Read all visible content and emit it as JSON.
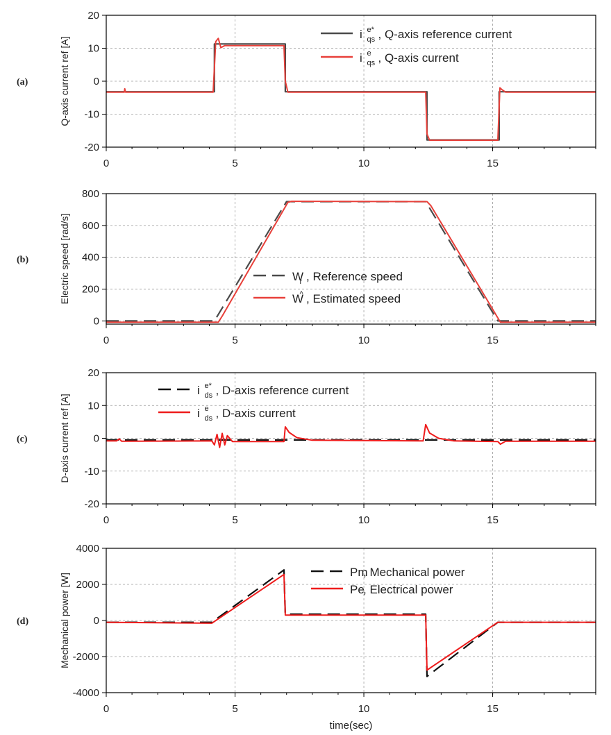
{
  "chart_data": [
    {
      "type": "line",
      "panel_label": "(a)",
      "ylabel": "Q-axis current ref [A]",
      "xlim": [
        0,
        19
      ],
      "ylim": [
        -20,
        20
      ],
      "yticks": [
        -20,
        -10,
        0,
        10,
        20
      ],
      "xticks": [
        0,
        5,
        10,
        15
      ],
      "grid": true,
      "legend_position": "top-right",
      "series": [
        {
          "symbol": "i",
          "sup": "e*",
          "sub": "qs",
          "name": ", Q-axis reference current",
          "color": "#4a4a4a",
          "dash": "solid",
          "x": [
            0,
            4.2,
            4.2,
            6.95,
            6.95,
            12.45,
            12.45,
            15.25,
            15.25,
            19
          ],
          "y": [
            -3.2,
            -3.2,
            11.3,
            11.3,
            -3.2,
            -3.2,
            -17.8,
            -17.8,
            -3.2,
            -3.2
          ]
        },
        {
          "symbol": "i",
          "sup": "e",
          "sub": "qs",
          "name": ", Q-axis current",
          "color": "#e8403a",
          "dash": "solid",
          "x": [
            0,
            0.7,
            0.72,
            0.75,
            4.15,
            4.25,
            4.35,
            4.45,
            4.6,
            6.9,
            6.95,
            7.05,
            12.4,
            12.45,
            12.55,
            15.2,
            15.28,
            15.35,
            15.5,
            19
          ],
          "y": [
            -3.3,
            -3.3,
            -2.3,
            -3.3,
            -3.3,
            12.0,
            13.0,
            10.2,
            10.8,
            10.8,
            0,
            -3.3,
            -3.3,
            -16,
            -17.9,
            -17.9,
            -2.0,
            -2.5,
            -3.3,
            -3.3
          ]
        }
      ]
    },
    {
      "type": "line",
      "panel_label": "(b)",
      "ylabel": "Electric speed [rad/s]",
      "xlim": [
        0,
        19
      ],
      "ylim": [
        -20,
        800
      ],
      "yticks": [
        0,
        200,
        400,
        600,
        800
      ],
      "xticks": [
        0,
        5,
        10,
        15
      ],
      "grid": true,
      "legend_position": "bottom-center",
      "series": [
        {
          "symbol": "W",
          "sub": "r",
          "name": " , Reference speed",
          "color": "#4a4a4a",
          "dash": "long-dash",
          "x": [
            0,
            4.2,
            7.0,
            12.4,
            15.2,
            19
          ],
          "y": [
            0,
            0,
            750,
            750,
            0,
            0
          ]
        },
        {
          "symbol": "W",
          "sup": "^",
          "name": " , Estimated speed",
          "color": "#e8403a",
          "dash": "solid",
          "x": [
            0,
            4.35,
            4.5,
            7.05,
            7.2,
            12.45,
            12.6,
            15.3,
            19
          ],
          "y": [
            -8,
            -8,
            30,
            745,
            752,
            750,
            725,
            -8,
            -8
          ]
        }
      ]
    },
    {
      "type": "line",
      "panel_label": "(c)",
      "ylabel": "D-axis current ref [A]",
      "xlim": [
        0,
        19
      ],
      "ylim": [
        -20,
        20
      ],
      "yticks": [
        -20,
        -10,
        0,
        10,
        20
      ],
      "xticks": [
        0,
        5,
        10,
        15
      ],
      "grid": true,
      "legend_position": "top-left",
      "series": [
        {
          "symbol": "i",
          "sup": "e*",
          "sub": "ds",
          "name": ", D-axis reference current",
          "color": "#111111",
          "dash": "long-dash",
          "x": [
            0,
            19
          ],
          "y": [
            -0.5,
            -0.5
          ]
        },
        {
          "symbol": "i",
          "sup": "e",
          "sub": "ds",
          "name": ", D-axis current",
          "color": "#ee1c1c",
          "dash": "solid",
          "x": [
            0,
            0.4,
            0.5,
            0.6,
            4.1,
            4.2,
            4.3,
            4.4,
            4.5,
            4.6,
            4.7,
            4.9,
            6.9,
            6.95,
            7.1,
            7.4,
            8.0,
            12.3,
            12.4,
            12.55,
            12.9,
            13.5,
            15.2,
            15.3,
            15.5,
            19
          ],
          "y": [
            -0.8,
            -0.8,
            -0.2,
            -0.9,
            -0.8,
            -2.0,
            1.2,
            -2.8,
            1.5,
            -2.0,
            0.8,
            -1.0,
            -1.0,
            3.5,
            1.8,
            0.2,
            -0.6,
            -0.8,
            4.2,
            1.6,
            0.0,
            -0.8,
            -1.0,
            -1.8,
            -0.9,
            -0.9
          ]
        }
      ]
    },
    {
      "type": "line",
      "panel_label": "(d)",
      "ylabel": "Mechanical power [W]",
      "xlabel": "time(sec)",
      "xlim": [
        0,
        19
      ],
      "ylim": [
        -4000,
        4000
      ],
      "yticks": [
        -4000,
        -2000,
        0,
        2000,
        4000
      ],
      "xticks": [
        0,
        5,
        10,
        15
      ],
      "grid": true,
      "legend_position": "top-right",
      "series": [
        {
          "symbol": "Pm",
          "name": " , Mechanical power",
          "color": "#111111",
          "dash": "long-dash",
          "x": [
            0,
            4.1,
            6.9,
            6.95,
            12.4,
            12.45,
            15.2,
            19
          ],
          "y": [
            -100,
            -100,
            2800,
            350,
            350,
            -3100,
            -100,
            -100
          ]
        },
        {
          "symbol": "Pe",
          "name": " , Electrical power",
          "color": "#ee1c1c",
          "dash": "solid",
          "x": [
            0,
            4.1,
            6.9,
            6.95,
            12.4,
            12.45,
            15.2,
            19
          ],
          "y": [
            -100,
            -150,
            2550,
            300,
            300,
            -2750,
            -100,
            -100
          ]
        }
      ]
    }
  ]
}
